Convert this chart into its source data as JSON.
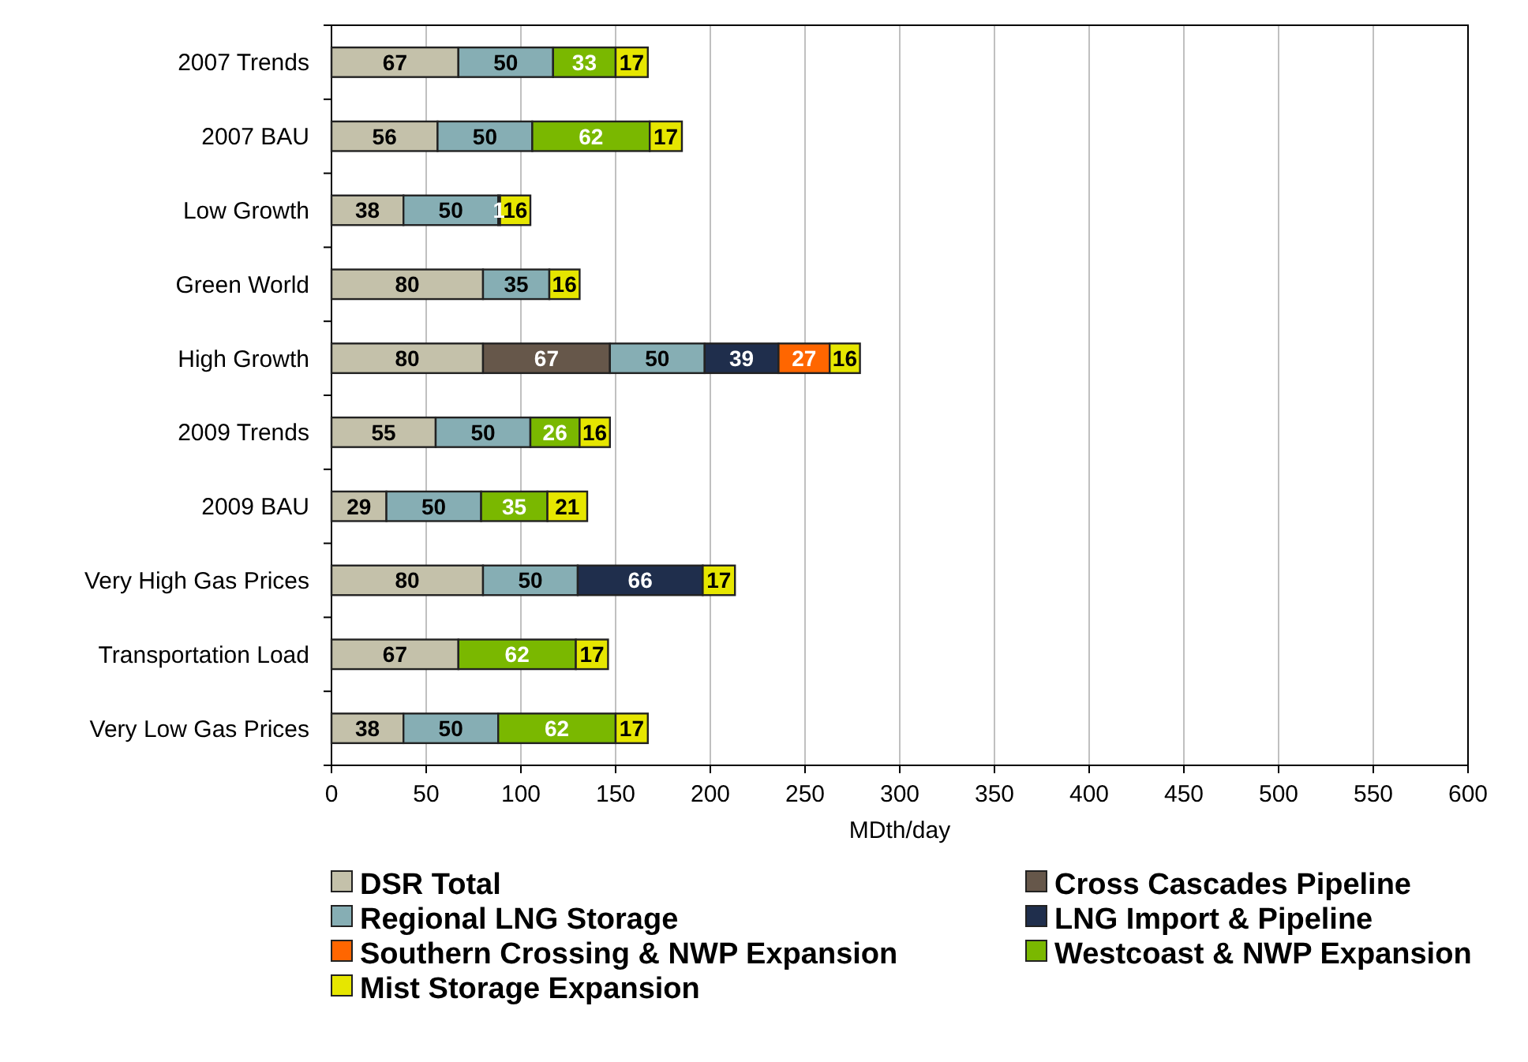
{
  "chart_data": {
    "type": "bar",
    "orientation": "horizontal",
    "stacked": true,
    "xlabel": "MDth/day",
    "categories": [
      "2007 Trends",
      "2007 BAU",
      "Low Growth",
      "Green World",
      "High Growth",
      "2009 Trends",
      "2009 BAU",
      "Very High Gas Prices",
      "Transportation Load",
      "Very Low Gas Prices"
    ],
    "series": [
      {
        "name": "DSR Total",
        "color": "#c4c1aa",
        "values": [
          67,
          56,
          38,
          80,
          80,
          55,
          29,
          80,
          67,
          38
        ]
      },
      {
        "name": "Cross Cascades Pipeline",
        "color": "#66574a",
        "values": [
          null,
          null,
          null,
          null,
          67,
          null,
          null,
          null,
          null,
          null
        ]
      },
      {
        "name": "Regional LNG Storage",
        "color": "#86aeb4",
        "values": [
          50,
          50,
          50,
          35,
          50,
          50,
          50,
          50,
          null,
          50
        ]
      },
      {
        "name": "LNG Import & Pipeline",
        "color": "#1f2e4c",
        "values": [
          null,
          null,
          1,
          null,
          39,
          null,
          null,
          66,
          null,
          null
        ]
      },
      {
        "name": "Southern Crossing & NWP Expansion",
        "color": "#ff6600",
        "values": [
          null,
          null,
          null,
          null,
          27,
          null,
          null,
          null,
          null,
          null
        ]
      },
      {
        "name": "Westcoast & NWP Expansion",
        "color": "#7ab800",
        "values": [
          33,
          62,
          null,
          null,
          null,
          26,
          35,
          null,
          62,
          62
        ]
      },
      {
        "name": "Mist Storage Expansion",
        "color": "#e6e600",
        "values": [
          17,
          17,
          16,
          16,
          16,
          16,
          21,
          17,
          17,
          17
        ]
      }
    ],
    "xlim": [
      0,
      600
    ],
    "xticks": [
      0,
      50,
      100,
      150,
      200,
      250,
      300,
      350,
      400,
      450,
      500,
      550,
      600
    ],
    "grid": "x",
    "legend": "bottom",
    "data_labels": true
  }
}
